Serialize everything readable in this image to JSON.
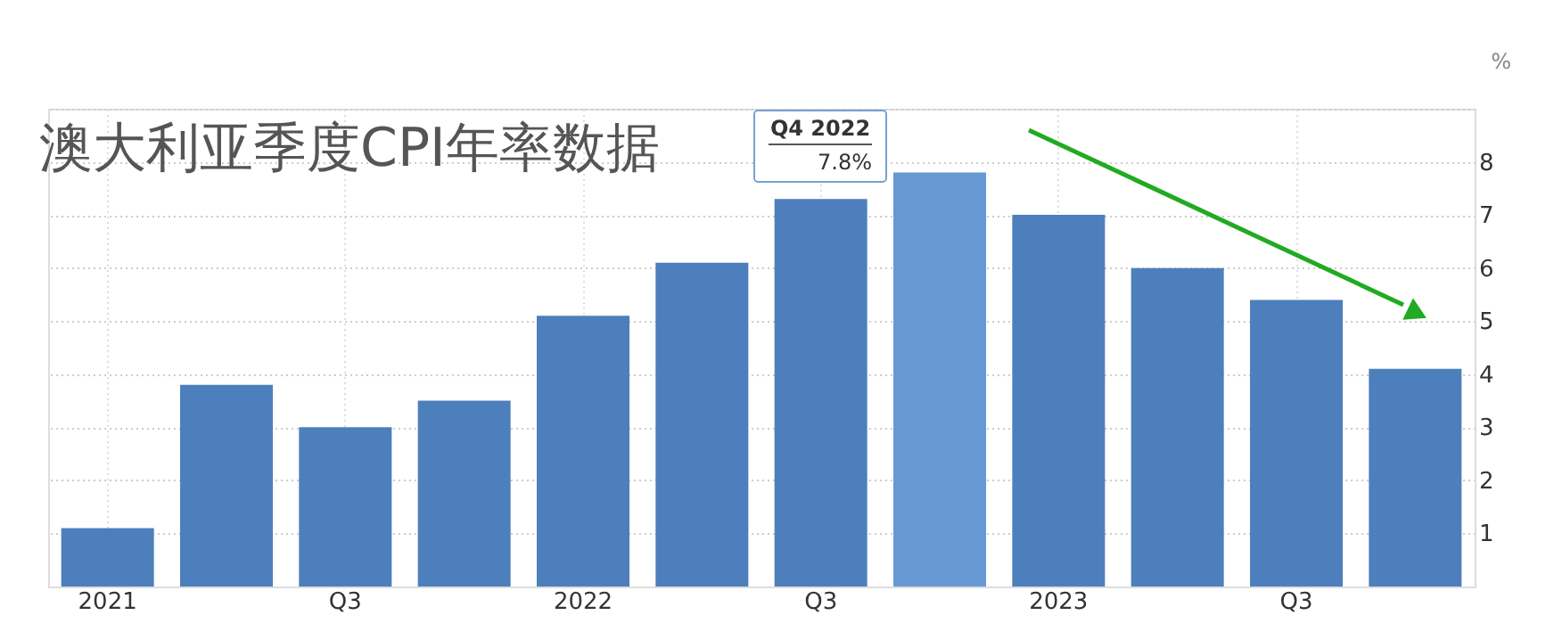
{
  "chart_data": {
    "type": "bar",
    "title": "澳大利亚季度CPI年率数据",
    "ylabel": "%",
    "categories": [
      "2021",
      null,
      "Q3",
      null,
      "2022",
      null,
      "Q3",
      null,
      "2023",
      null,
      "Q3",
      null
    ],
    "values": [
      1.1,
      3.8,
      3.0,
      3.5,
      5.1,
      6.1,
      7.3,
      7.8,
      7.0,
      6.0,
      5.4,
      4.1
    ],
    "colors": [
      "#4d7fbc",
      "#4d7fbc",
      "#4d7fbc",
      "#4d7fbc",
      "#4d7fbc",
      "#4d7fbc",
      "#4d7fbc",
      "#6699d4",
      "#4d7fbc",
      "#4d7fbc",
      "#4d7fbc",
      "#4d7fbc"
    ],
    "ylim": [
      0,
      9
    ],
    "yticks": [
      1,
      2,
      3,
      4,
      5,
      6,
      7,
      8,
      {
        "value": 9,
        "label": null
      }
    ],
    "grid": true,
    "annotations": [
      "Q4 2022",
      "7.8%"
    ]
  }
}
